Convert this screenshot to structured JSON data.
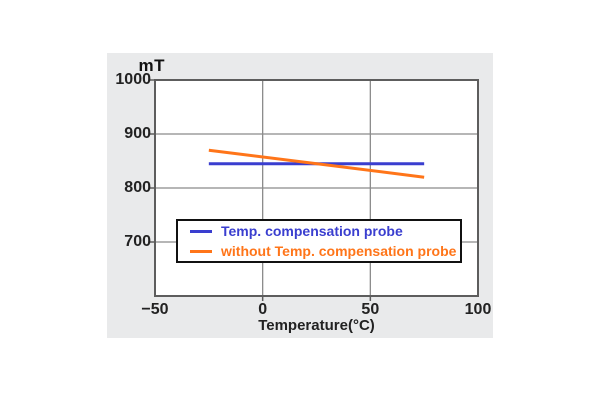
{
  "chart_data": {
    "type": "line",
    "title": "",
    "xlabel": "Temperature(°C)",
    "ylabel": "mT",
    "xlim": [
      -50,
      100
    ],
    "ylim": [
      600,
      1000
    ],
    "x_ticks": [
      -50,
      0,
      50,
      100
    ],
    "y_ticks": [
      1000,
      900,
      800,
      700
    ],
    "grid": true,
    "legend_position": "inside-bottom-left",
    "series": [
      {
        "name": "Temp. compensation probe",
        "color": "#3a3ecf",
        "points": [
          {
            "x": -25,
            "y": 845
          },
          {
            "x": 75,
            "y": 845
          }
        ]
      },
      {
        "name": "without Temp. compensation probe",
        "color": "#ff7519",
        "points": [
          {
            "x": -25,
            "y": 870
          },
          {
            "x": 75,
            "y": 820
          }
        ]
      }
    ],
    "colors": {
      "panel_background": "#e9eaeb",
      "plot_background": "#ffffff",
      "grid": "#8b8b8b",
      "axis_border": "#5d5d5d",
      "tick_text": "#222222",
      "legend_border": "#111111",
      "legend_background": "#ffffff"
    }
  }
}
